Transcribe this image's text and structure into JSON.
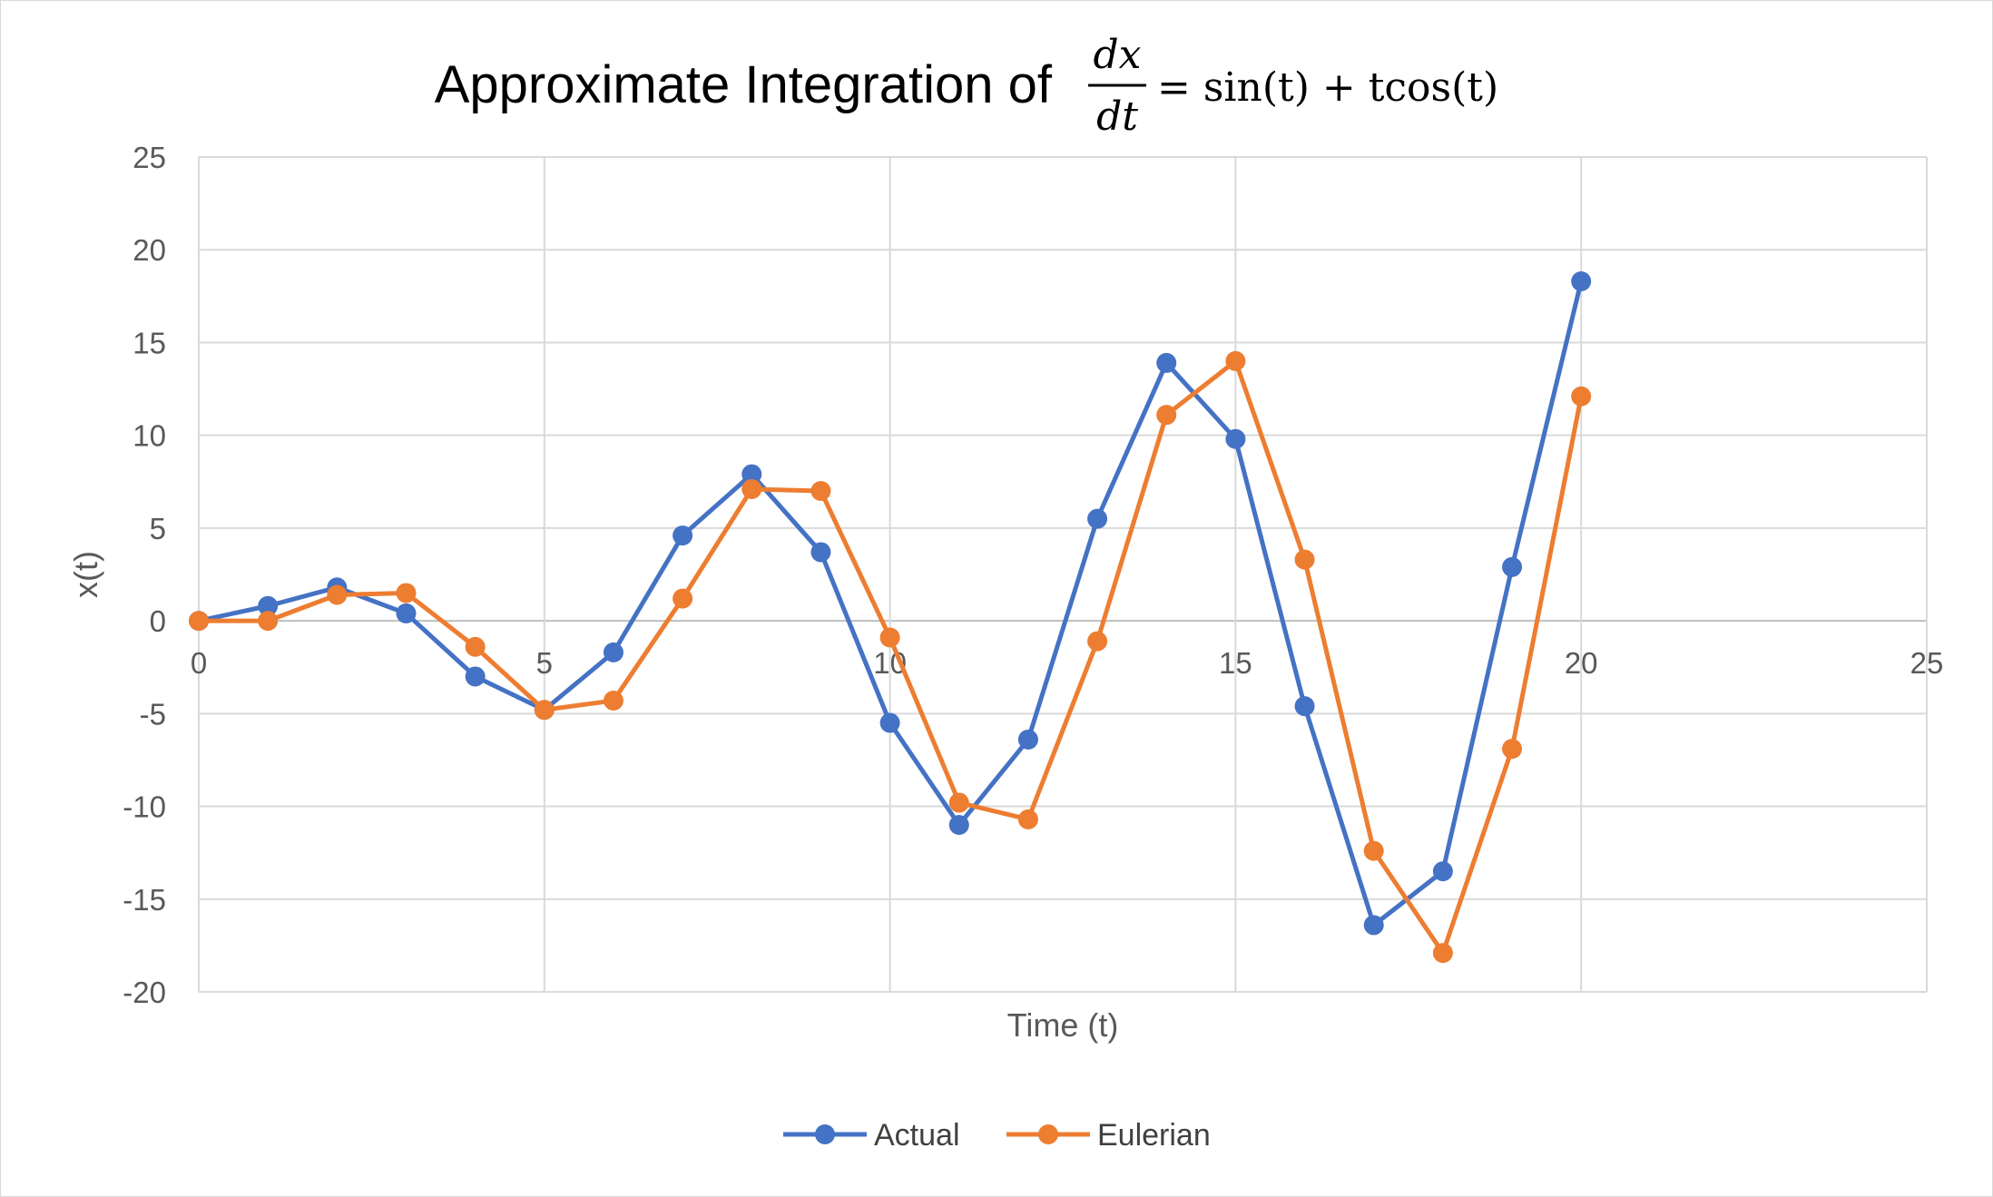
{
  "chart_data": {
    "type": "line",
    "title": {
      "prefix": "Approximate Integration of",
      "numerator": "dx",
      "denominator": "dt",
      "rhs": "= sin(t) + tcos(t)"
    },
    "xlabel": "Time (t)",
    "ylabel": "x(t)",
    "xlim": [
      0,
      25
    ],
    "ylim": [
      -20,
      25
    ],
    "xticks": [
      0,
      5,
      10,
      15,
      20,
      25
    ],
    "yticks": [
      25,
      20,
      15,
      10,
      5,
      0,
      -5,
      -10,
      -15,
      -20
    ],
    "grid": true,
    "legend_position": "bottom",
    "x": [
      0,
      1,
      2,
      3,
      4,
      5,
      6,
      7,
      8,
      9,
      10,
      11,
      12,
      13,
      14,
      15,
      16,
      17,
      18,
      19,
      20
    ],
    "series": [
      {
        "name": "Actual",
        "color": "#4472c4",
        "values": [
          0,
          0.8,
          1.8,
          0.4,
          -3.0,
          -4.8,
          -1.7,
          4.6,
          7.9,
          3.7,
          -5.5,
          -11.0,
          -6.4,
          5.5,
          13.9,
          9.8,
          -4.6,
          -16.4,
          -13.5,
          2.9,
          18.3
        ]
      },
      {
        "name": "Eulerian",
        "color": "#ed7d31",
        "values": [
          0,
          0,
          1.4,
          1.5,
          -1.4,
          -4.8,
          -4.3,
          1.2,
          7.1,
          7.0,
          -0.9,
          -9.8,
          -10.7,
          -1.1,
          11.1,
          14.0,
          3.3,
          -12.4,
          -17.9,
          -6.9,
          12.1
        ]
      }
    ]
  }
}
